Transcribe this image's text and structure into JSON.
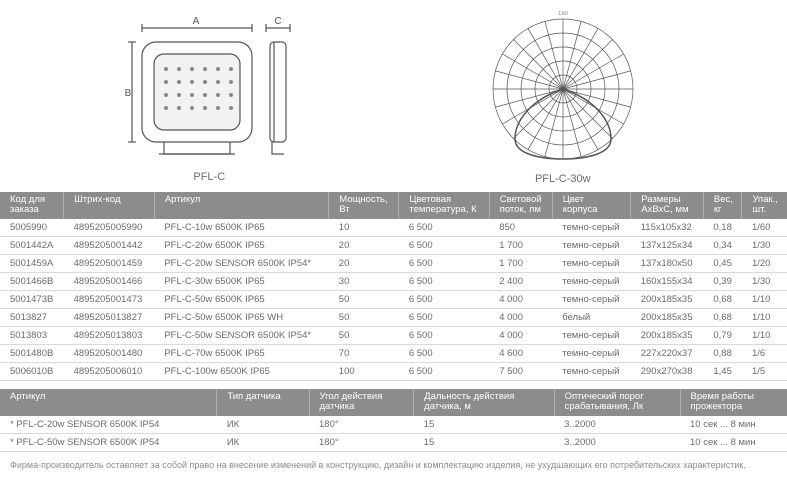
{
  "diagram1": {
    "label": "PFL-C",
    "dims": {
      "A": "A",
      "B": "B",
      "C": "C"
    }
  },
  "diagram2": {
    "label": "PFL-C-30w"
  },
  "table1": {
    "columns": [
      "Код для\nзаказа",
      "Штрих-код",
      "Артикул",
      "Мощность,\nВт",
      "Цветовая\nтемпература, К",
      "Световой\nпоток, лм",
      "Цвет\nкорпуса",
      "Размеры\nАхВхС, мм",
      "Вес,\nкг",
      "Упак.,\nшт."
    ],
    "rows": [
      [
        "5005990",
        "4895205005990",
        "PFL-C-10w 6500K IP65",
        "10",
        "6 500",
        "850",
        "темно-серый",
        "115х105х32",
        "0,18",
        "1/60"
      ],
      [
        "5001442A",
        "4895205001442",
        "PFL-C-20w 6500K IP65",
        "20",
        "6 500",
        "1 700",
        "темно-серый",
        "137х125х34",
        "0,34",
        "1/30"
      ],
      [
        "5001459A",
        "4895205001459",
        "PFL-C-20w SENSOR 6500K IP54*",
        "20",
        "6 500",
        "1 700",
        "темно-серый",
        "137х180х50",
        "0,45",
        "1/20"
      ],
      [
        "5001466B",
        "4895205001466",
        "PFL-C-30w 6500K IP65",
        "30",
        "6 500",
        "2 400",
        "темно-серый",
        "160х155х34",
        "0,39",
        "1/30"
      ],
      [
        "5001473B",
        "4895205001473",
        "PFL-C-50w 6500K IP65",
        "50",
        "6 500",
        "4 000",
        "темно-серый",
        "200х185х35",
        "0,68",
        "1/10"
      ],
      [
        "5013827",
        "4895205013827",
        "PFL-C-50w 6500K IP65 WH",
        "50",
        "6 500",
        "4 000",
        "белый",
        "200х185х35",
        "0,68",
        "1/10"
      ],
      [
        "5013803",
        "4895205013803",
        "PFL-C-50w SENSOR 6500K IP54*",
        "50",
        "6 500",
        "4 000",
        "темно-серый",
        "200х185х35",
        "0,79",
        "1/10"
      ],
      [
        "5001480B",
        "4895205001480",
        "PFL-C-70w 6500K IP65",
        "70",
        "6 500",
        "4 600",
        "темно-серый",
        "227х220х37",
        "0,88",
        "1/6"
      ],
      [
        "5006010B",
        "4895205006010",
        "PFL-C-100w 6500K IP65",
        "100",
        "6 500",
        "7 500",
        "темно-серый",
        "290х270х38",
        "1,45",
        "1/5"
      ]
    ]
  },
  "table2": {
    "columns": [
      "Артикул",
      "Тип датчика",
      "Угол действия\nдатчика",
      "Дальность действия\nдатчика, м",
      "Оптический порог\nсрабатывания, Лк",
      "Время работы\nпрожектора"
    ],
    "rows": [
      [
        "* PFL-C-20w SENSOR 6500K IP54",
        "ИК",
        "180°",
        "15",
        "3..2000",
        "10 сек ... 8 мин"
      ],
      [
        "* PFL-C-50w SENSOR 6500K IP54",
        "ИК",
        "180°",
        "15",
        "3..2000",
        "10 сек ... 8 мин"
      ]
    ]
  },
  "footnote": "Фирма-производитель оставляет за собой право на внесение изменений в конструкцию, дизайн и комплектацию изделия, не ухудшающих его потребительских характеристик."
}
